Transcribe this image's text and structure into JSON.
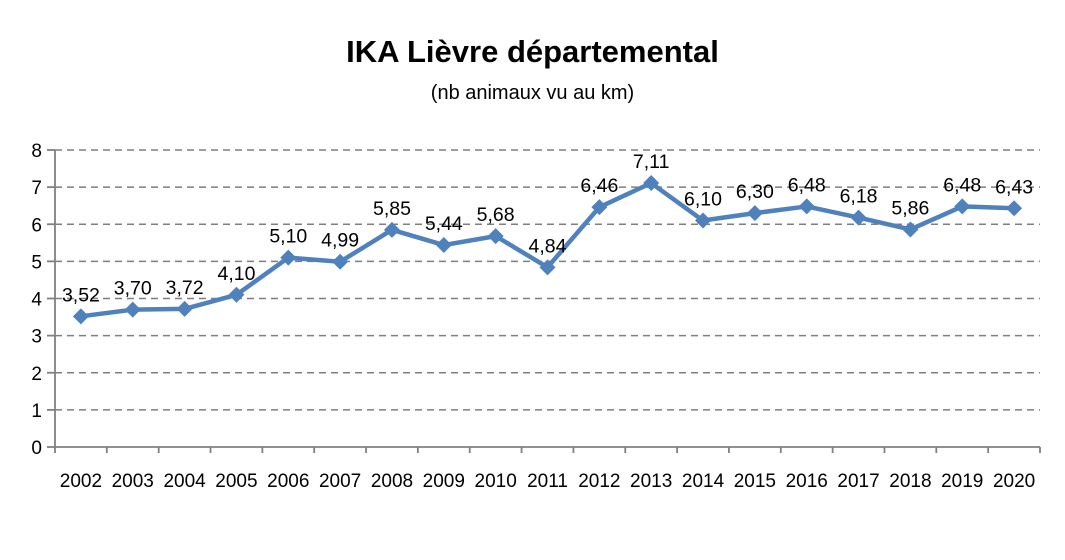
{
  "chart_data": {
    "type": "line",
    "title": "IKA Lièvre départemental",
    "subtitle": "(nb animaux vu au km)",
    "categories": [
      "2002",
      "2003",
      "2004",
      "2005",
      "2006",
      "2007",
      "2008",
      "2009",
      "2010",
      "2011",
      "2012",
      "2013",
      "2014",
      "2015",
      "2016",
      "2017",
      "2018",
      "2019",
      "2020"
    ],
    "series": [
      {
        "name": "IKA Lièvre",
        "values": [
          3.52,
          3.7,
          3.72,
          4.1,
          5.1,
          4.99,
          5.85,
          5.44,
          5.68,
          4.84,
          6.46,
          7.11,
          6.1,
          6.3,
          6.48,
          6.18,
          5.86,
          6.48,
          6.43
        ]
      }
    ],
    "labels": [
      "3,52",
      "3,70",
      "3,72",
      "4,10",
      "5,10",
      "4,99",
      "5,85",
      "5,44",
      "5,68",
      "4,84",
      "6,46",
      "7,11",
      "6,10",
      "6,30",
      "6,48",
      "6,18",
      "5,86",
      "6,48",
      "6,43"
    ],
    "xlabel": "",
    "ylabel": "",
    "ylim": [
      0,
      8
    ],
    "yticks": [
      "0",
      "1",
      "2",
      "3",
      "4",
      "5",
      "6",
      "7",
      "8"
    ],
    "grid": "horizontal-dashed",
    "legend": "none",
    "marker": "diamond",
    "colors": {
      "line": "#4F81BD",
      "marker": "#4F81BD",
      "gridline": "#7F7F7F",
      "axis": "#808080",
      "text": "#000000"
    }
  }
}
